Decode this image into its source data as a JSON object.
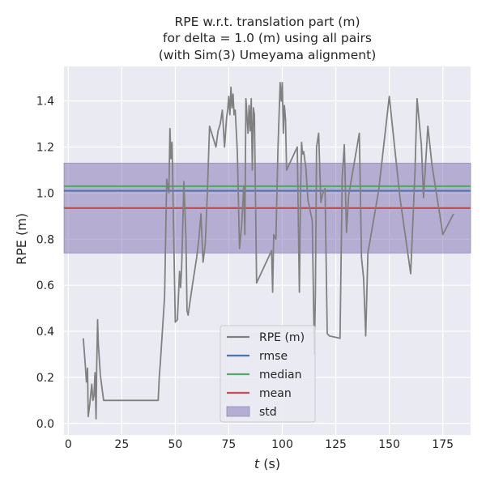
{
  "chart_data": {
    "type": "line",
    "title_lines": [
      "RPE w.r.t. translation part (m)",
      "for delta = 1.0 (m) using all pairs",
      "(with Sim(3) Umeyama alignment)"
    ],
    "xlabel_prefix": "t",
    "xlabel_suffix": " (s)",
    "ylabel": "RPE (m)",
    "xlim": [
      -2,
      188
    ],
    "ylim": [
      -0.05,
      1.55
    ],
    "xticks": [
      0,
      25,
      50,
      75,
      100,
      125,
      150,
      175
    ],
    "yticks": [
      0.0,
      0.2,
      0.4,
      0.6,
      0.8,
      1.0,
      1.2,
      1.4
    ],
    "grid": true,
    "legend_position": "lower-center",
    "background": "#eaeaf2",
    "series": [
      {
        "name": "RPE (m)",
        "color": "#808080",
        "x": [
          7,
          8,
          8.5,
          9,
          9.3,
          10,
          11,
          11.5,
          12,
          12.5,
          13,
          13.3,
          13.7,
          14,
          15,
          16.5,
          42,
          42.5,
          43,
          45,
          46,
          47,
          47.5,
          48,
          48.5,
          50,
          51,
          52,
          52.5,
          53,
          54,
          55,
          55.5,
          56,
          58,
          60,
          61,
          62,
          63,
          64,
          65,
          66,
          69,
          70,
          71,
          72,
          73,
          74,
          74.5,
          75,
          75.5,
          76,
          76.5,
          77,
          77.5,
          78,
          79,
          80,
          81,
          82,
          82.5,
          83,
          84,
          84.5,
          85,
          85.5,
          86,
          86.5,
          87,
          88,
          95,
          95.5,
          96,
          97,
          98,
          99,
          99.5,
          100,
          100.5,
          101,
          101.5,
          102,
          107,
          108,
          108.5,
          109,
          109.5,
          110,
          111,
          112,
          114,
          115,
          115.5,
          116,
          117,
          118,
          119,
          120,
          121,
          122,
          127,
          128,
          129,
          130,
          131,
          136,
          137,
          138,
          139,
          140,
          145,
          150,
          155,
          160,
          162,
          163,
          165,
          166,
          168,
          170,
          175,
          180
        ],
        "y": [
          0.37,
          0.25,
          0.18,
          0.24,
          0.03,
          0.08,
          0.17,
          0.1,
          0.12,
          0.22,
          0.02,
          0.25,
          0.45,
          0.35,
          0.21,
          0.1,
          0.1,
          0.2,
          0.26,
          0.55,
          1.06,
          1.0,
          1.28,
          1.15,
          1.22,
          0.44,
          0.45,
          0.66,
          0.59,
          0.68,
          1.05,
          0.8,
          0.49,
          0.47,
          0.6,
          0.72,
          0.8,
          0.91,
          0.7,
          0.78,
          1.0,
          1.29,
          1.2,
          1.27,
          1.3,
          1.36,
          1.2,
          1.33,
          1.36,
          1.42,
          1.34,
          1.46,
          1.37,
          1.43,
          1.34,
          1.36,
          1.18,
          0.76,
          0.86,
          1.03,
          0.82,
          1.41,
          1.26,
          1.38,
          1.27,
          1.41,
          1.1,
          1.37,
          1.34,
          0.61,
          0.75,
          0.57,
          0.82,
          0.8,
          1.2,
          1.48,
          1.4,
          1.48,
          1.26,
          1.38,
          1.32,
          1.1,
          1.2,
          0.57,
          0.99,
          1.22,
          1.17,
          1.18,
          1.11,
          0.97,
          0.88,
          0.3,
          0.57,
          1.2,
          1.26,
          0.96,
          1.0,
          1.02,
          0.39,
          0.38,
          0.37,
          1.07,
          1.21,
          0.83,
          0.99,
          1.26,
          0.72,
          0.63,
          0.38,
          0.74,
          1.01,
          1.42,
          0.98,
          0.65,
          1.09,
          1.41,
          1.21,
          0.98,
          1.29,
          1.12,
          0.82,
          0.91
        ]
      },
      {
        "name": "rmse",
        "color": "#4c72b0",
        "value": 1.01
      },
      {
        "name": "median",
        "color": "#55a868",
        "value": 1.03
      },
      {
        "name": "mean",
        "color": "#c44e52",
        "value": 0.935
      },
      {
        "name": "std",
        "color": "#8172b2",
        "lower": 0.74,
        "upper": 1.13
      }
    ]
  }
}
